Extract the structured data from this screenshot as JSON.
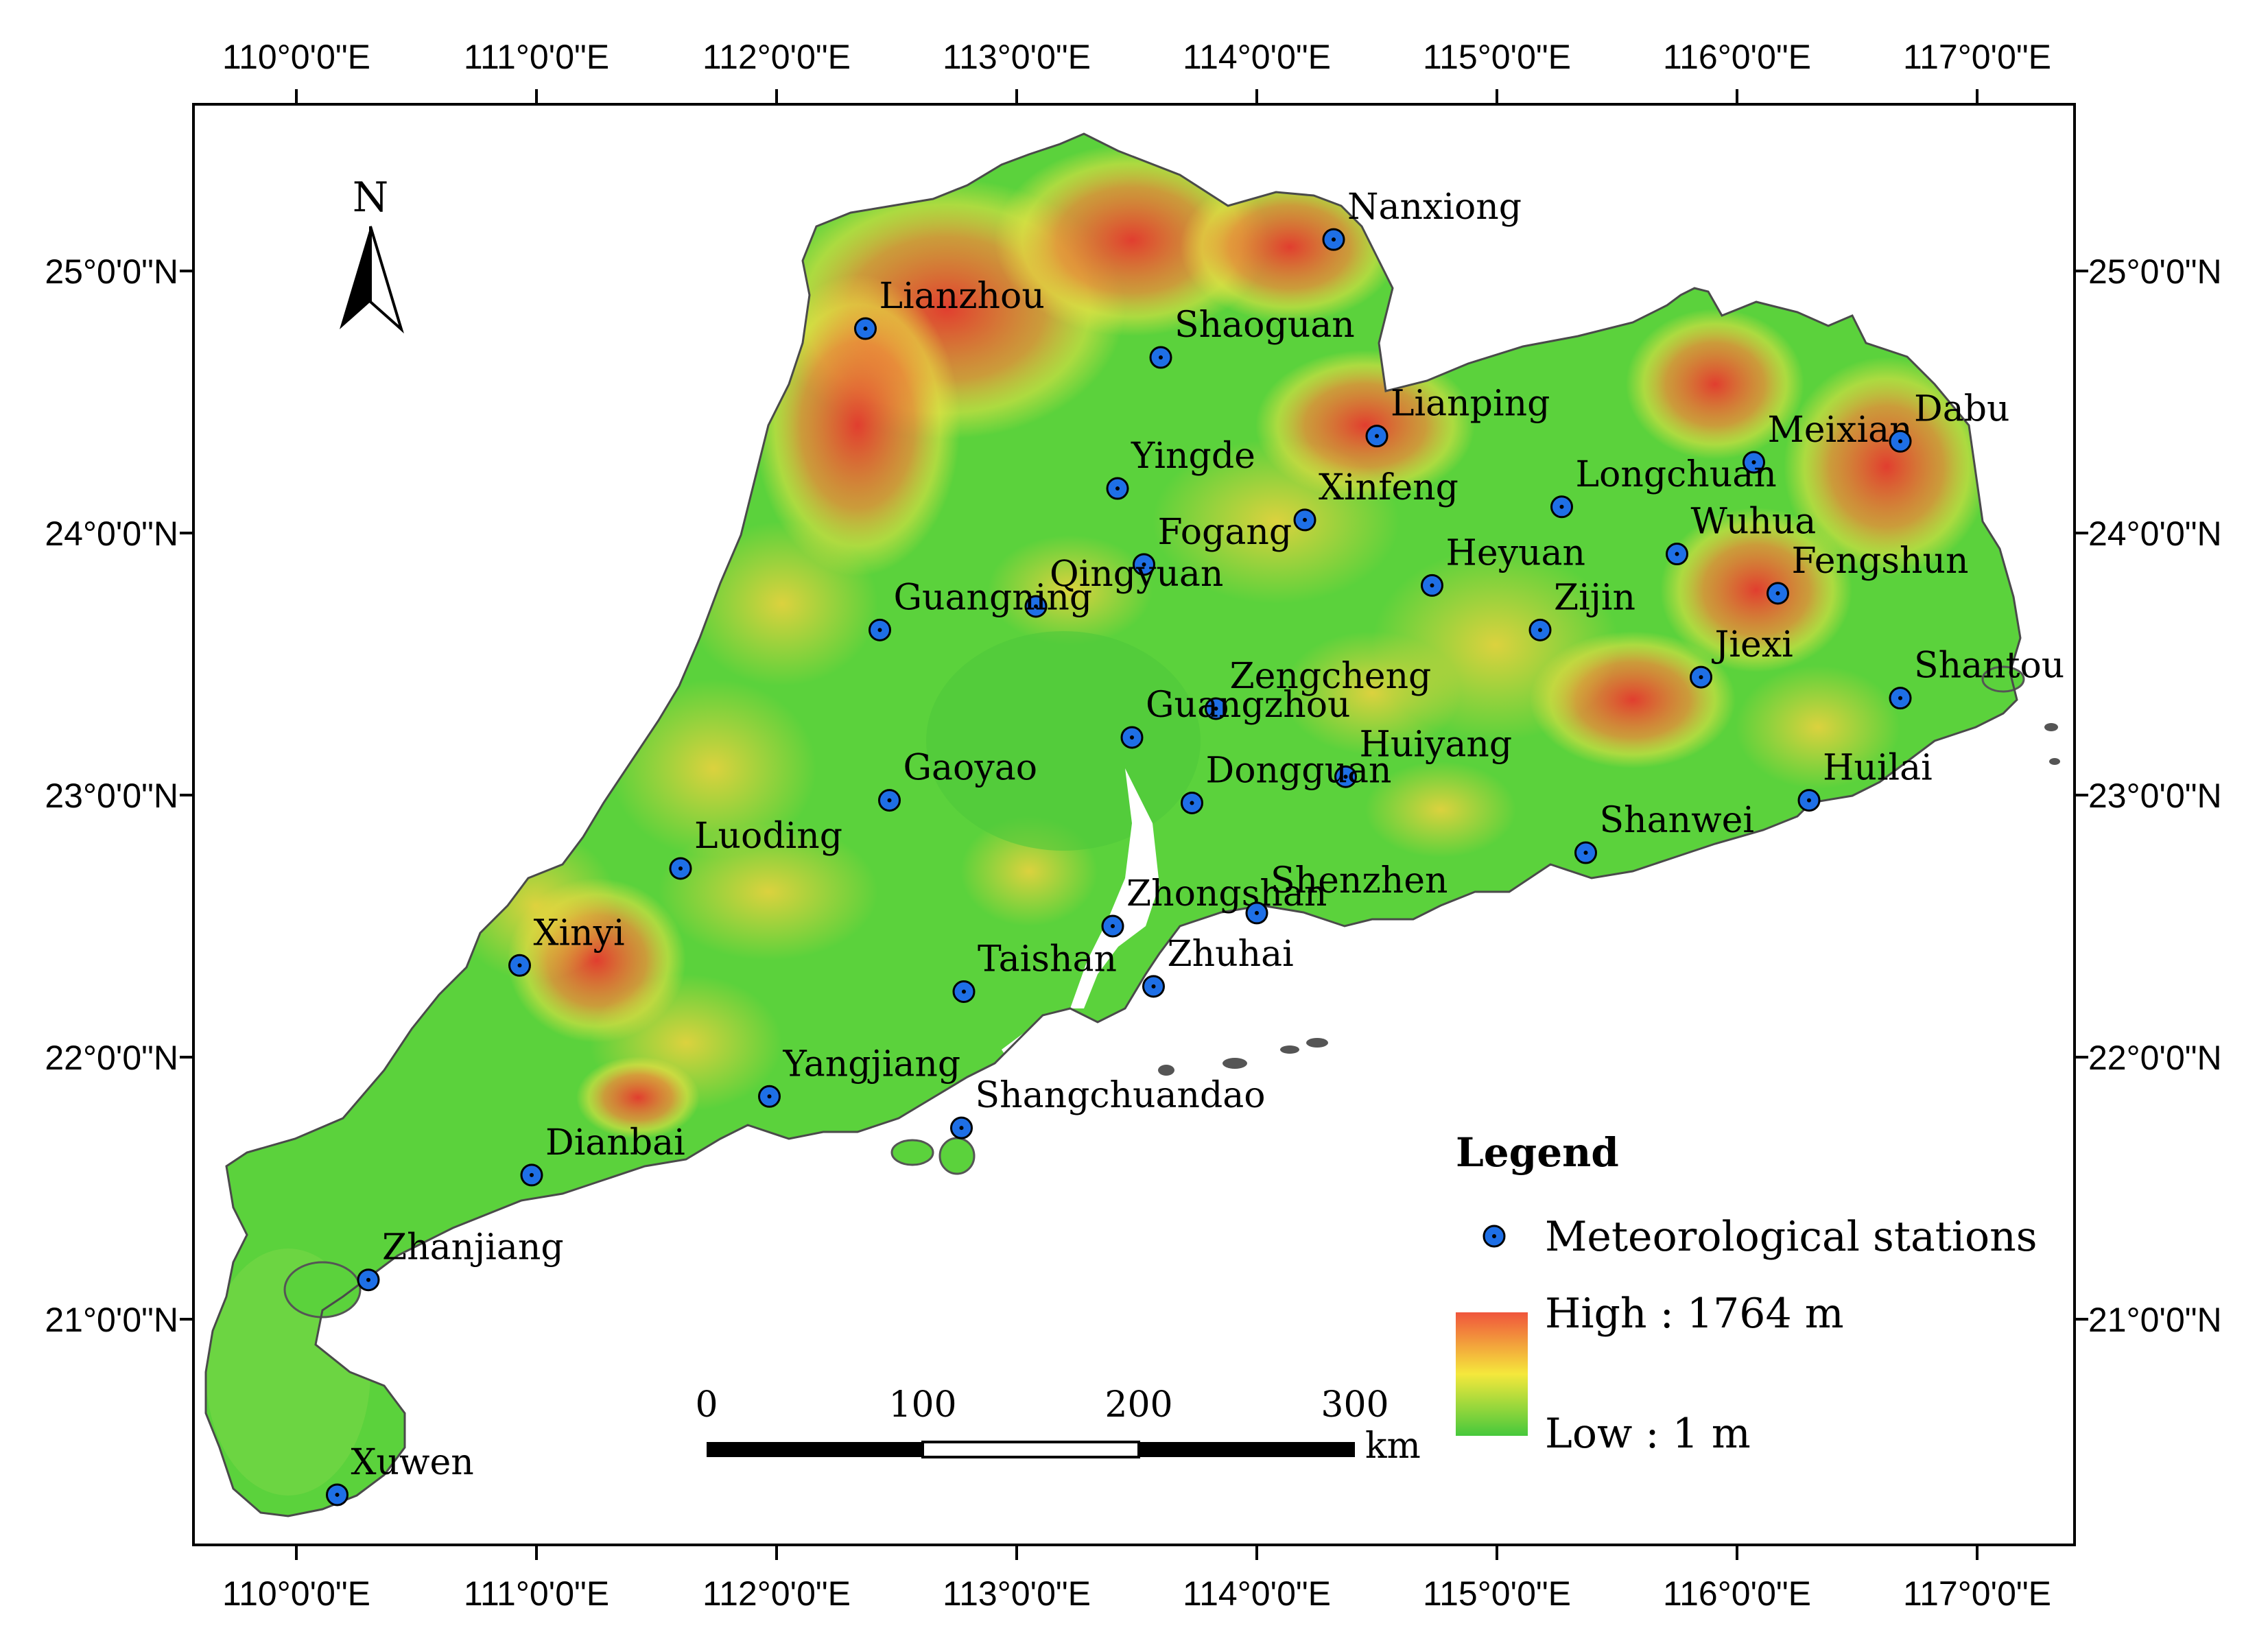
{
  "axes": {
    "top": [
      "110°0'0\"E",
      "111°0'0\"E",
      "112°0'0\"E",
      "113°0'0\"E",
      "114°0'0\"E",
      "115°0'0\"E",
      "116°0'0\"E",
      "117°0'0\"E"
    ],
    "bottom": [
      "110°0'0\"E",
      "111°0'0\"E",
      "112°0'0\"E",
      "113°0'0\"E",
      "114°0'0\"E",
      "115°0'0\"E",
      "116°0'0\"E",
      "117°0'0\"E"
    ],
    "left": [
      "25°0'0\"N",
      "24°0'0\"N",
      "23°0'0\"N",
      "22°0'0\"N",
      "21°0'0\"N"
    ],
    "right": [
      "25°0'0\"N",
      "24°0'0\"N",
      "23°0'0\"N",
      "22°0'0\"N",
      "21°0'0\"N"
    ]
  },
  "north_arrow": {
    "label": "N"
  },
  "stations": [
    {
      "name": "Nanxiong",
      "lon": 114.32,
      "lat": 25.12
    },
    {
      "name": "Lianzhou",
      "lon": 112.37,
      "lat": 24.78
    },
    {
      "name": "Shaoguan",
      "lon": 113.6,
      "lat": 24.67
    },
    {
      "name": "Lianping",
      "lon": 114.5,
      "lat": 24.37
    },
    {
      "name": "Meixian",
      "lon": 116.07,
      "lat": 24.27
    },
    {
      "name": "Dabu",
      "lon": 116.68,
      "lat": 24.35
    },
    {
      "name": "Yingde",
      "lon": 113.42,
      "lat": 24.17
    },
    {
      "name": "Longchuan",
      "lon": 115.27,
      "lat": 24.1
    },
    {
      "name": "Xinfeng",
      "lon": 114.2,
      "lat": 24.05
    },
    {
      "name": "Fogang",
      "lon": 113.53,
      "lat": 23.88
    },
    {
      "name": "Wuhua",
      "lon": 115.75,
      "lat": 23.92
    },
    {
      "name": "Qingyuan",
      "lon": 113.08,
      "lat": 23.72
    },
    {
      "name": "Heyuan",
      "lon": 114.73,
      "lat": 23.8
    },
    {
      "name": "Fengshun",
      "lon": 116.17,
      "lat": 23.77
    },
    {
      "name": "Guangning",
      "lon": 112.43,
      "lat": 23.63
    },
    {
      "name": "Zijin",
      "lon": 115.18,
      "lat": 23.63
    },
    {
      "name": "Jiexi",
      "lon": 115.85,
      "lat": 23.45
    },
    {
      "name": "Shantou",
      "lon": 116.68,
      "lat": 23.37
    },
    {
      "name": "Zengcheng",
      "lon": 113.83,
      "lat": 23.33
    },
    {
      "name": "Guangzhou",
      "lon": 113.48,
      "lat": 23.22
    },
    {
      "name": "Huiyang",
      "lon": 114.37,
      "lat": 23.07
    },
    {
      "name": "Gaoyao",
      "lon": 112.47,
      "lat": 22.98
    },
    {
      "name": "Dongguan",
      "lon": 113.73,
      "lat": 22.97
    },
    {
      "name": "Huilai",
      "lon": 116.3,
      "lat": 22.98
    },
    {
      "name": "Shanwei",
      "lon": 115.37,
      "lat": 22.78
    },
    {
      "name": "Luoding",
      "lon": 111.6,
      "lat": 22.72
    },
    {
      "name": "Zhongshan",
      "lon": 113.4,
      "lat": 22.5
    },
    {
      "name": "Shenzhen",
      "lon": 114.0,
      "lat": 22.55
    },
    {
      "name": "Xinyi",
      "lon": 110.93,
      "lat": 22.35
    },
    {
      "name": "Taishan",
      "lon": 112.78,
      "lat": 22.25
    },
    {
      "name": "Zhuhai",
      "lon": 113.57,
      "lat": 22.27
    },
    {
      "name": "Yangjiang",
      "lon": 111.97,
      "lat": 21.85
    },
    {
      "name": "Shangchuandao",
      "lon": 112.77,
      "lat": 21.73
    },
    {
      "name": "Dianbai",
      "lon": 110.98,
      "lat": 21.55
    },
    {
      "name": "Zhanjiang",
      "lon": 110.3,
      "lat": 21.15
    },
    {
      "name": "Xuwen",
      "lon": 110.17,
      "lat": 20.33
    }
  ],
  "legend": {
    "title": "Legend",
    "station_label": "Meteorological stations",
    "high_label": "High : 1764 m",
    "low_label": "Low : 1 m",
    "colors": {
      "high": "#f0553c",
      "mid": "#f5e83c",
      "low": "#46c83c"
    }
  },
  "scale_bar": {
    "ticks": [
      "0",
      "100",
      "200",
      "300"
    ],
    "unit": "km"
  },
  "colors": {
    "land": "#5bd23c",
    "highland": "#f0553c",
    "midland": "#e6e640",
    "station_fill": "#1e6fe6",
    "frame": "#000000"
  }
}
